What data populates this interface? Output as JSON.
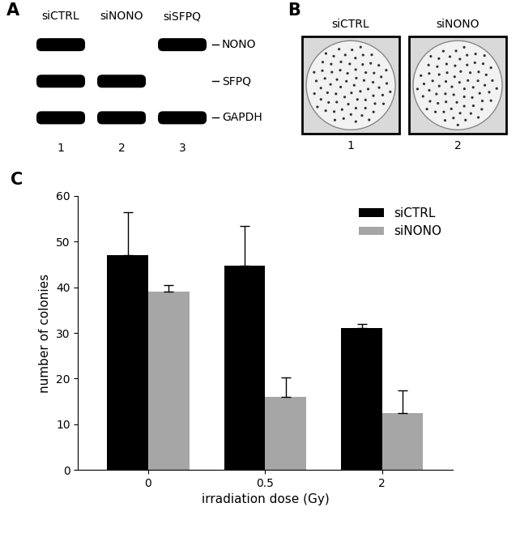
{
  "chart_data": {
    "type": "bar",
    "panel": "C",
    "categories": [
      "0",
      "0.5",
      "2"
    ],
    "x_label": "irradiation dose (Gy)",
    "y_label": "number of colonies",
    "series": [
      {
        "name": "siCTRL",
        "color": "#000000",
        "values": [
          47,
          44.7,
          31
        ],
        "errors": [
          9.5,
          8.8,
          1
        ]
      },
      {
        "name": "siNONO",
        "color": "#a6a6a6",
        "values": [
          39,
          16,
          12.5
        ],
        "errors": [
          1.5,
          4.2,
          5
        ]
      }
    ],
    "ylim": [
      0,
      60
    ],
    "yticks": [
      0,
      10,
      20,
      30,
      40,
      50,
      60
    ],
    "grid": false,
    "legend": "upper right"
  },
  "blot": {
    "panel": "A",
    "lanes": [
      {
        "label": "siCTRL",
        "number": "1"
      },
      {
        "label": "siNONO",
        "number": "2"
      },
      {
        "label": "siSFPQ",
        "number": "3"
      }
    ],
    "rows": [
      {
        "label": "NONO",
        "bands": [
          true,
          false,
          true
        ]
      },
      {
        "label": "SFPQ",
        "bands": [
          true,
          true,
          false
        ]
      },
      {
        "label": "GAPDH",
        "bands": [
          true,
          true,
          true
        ]
      }
    ]
  },
  "plates": {
    "panel": "B",
    "items": [
      {
        "label": "siCTRL",
        "number": "1"
      },
      {
        "label": "siNONO",
        "number": "2"
      }
    ]
  }
}
